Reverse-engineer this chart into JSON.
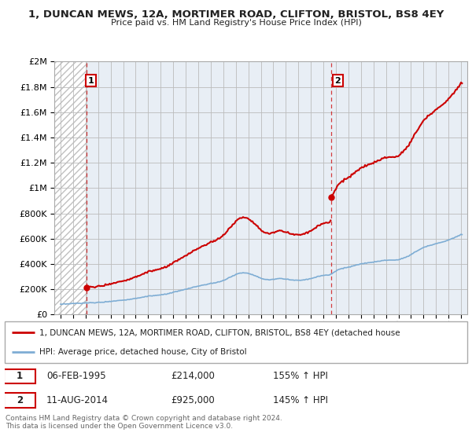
{
  "title": "1, DUNCAN MEWS, 12A, MORTIMER ROAD, CLIFTON, BRISTOL, BS8 4EY",
  "subtitle": "Price paid vs. HM Land Registry's House Price Index (HPI)",
  "property_label": "1, DUNCAN MEWS, 12A, MORTIMER ROAD, CLIFTON, BRISTOL, BS8 4EY (detached house",
  "hpi_label": "HPI: Average price, detached house, City of Bristol",
  "transaction1_date": "06-FEB-1995",
  "transaction1_price": 214000,
  "transaction1_hpi": "155% ↑ HPI",
  "transaction1_year": 1995.1,
  "transaction2_date": "11-AUG-2014",
  "transaction2_price": 925000,
  "transaction2_hpi": "145% ↑ HPI",
  "transaction2_year": 2014.6,
  "property_color": "#cc0000",
  "hpi_color": "#7eadd4",
  "background_color": "#ffffff",
  "plot_bg_color": "#e8eef5",
  "ylim": [
    0,
    2000000
  ],
  "yticks": [
    0,
    200000,
    400000,
    600000,
    800000,
    1000000,
    1200000,
    1400000,
    1600000,
    1800000,
    2000000
  ],
  "xlim_start": 1992.5,
  "xlim_end": 2025.5,
  "footer": "Contains HM Land Registry data © Crown copyright and database right 2024.\nThis data is licensed under the Open Government Licence v3.0."
}
